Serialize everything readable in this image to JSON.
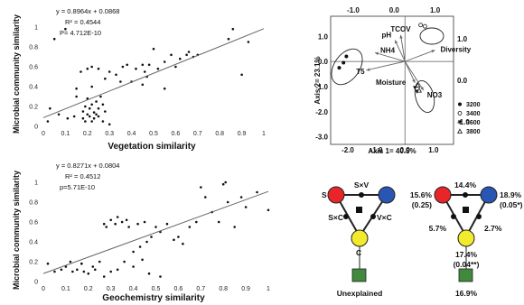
{
  "chart_data": [
    {
      "type": "scatter",
      "id": "vegetation",
      "xlabel": "Vegetation similarity",
      "ylabel": "Microbial community similarity",
      "xticks": [
        "0",
        "0.1",
        "0.2",
        "0.3",
        "0.4",
        "0.5",
        "0.6",
        "0.7",
        "0.8",
        "0.9",
        "1"
      ],
      "yticks": [
        "0",
        "0.2",
        "0.4",
        "0.6",
        "0.8",
        "1"
      ],
      "xlim": [
        0,
        1
      ],
      "ylim": [
        0,
        1.2
      ],
      "equation": "y = 0.8964x + 0.0868",
      "r2": "R² = 0.4544",
      "p": "P= 4.712E-10",
      "fit": {
        "slope": 0.8964,
        "intercept": 0.0868
      },
      "x": [
        0.02,
        0.03,
        0.05,
        0.07,
        0.1,
        0.11,
        0.14,
        0.15,
        0.17,
        0.18,
        0.18,
        0.19,
        0.19,
        0.2,
        0.2,
        0.21,
        0.21,
        0.22,
        0.22,
        0.23,
        0.23,
        0.24,
        0.24,
        0.25,
        0.25,
        0.26,
        0.27,
        0.28,
        0.2,
        0.22,
        0.25,
        0.28,
        0.3,
        0.33,
        0.36,
        0.38,
        0.4,
        0.42,
        0.45,
        0.46,
        0.47,
        0.48,
        0.5,
        0.52,
        0.55,
        0.58,
        0.6,
        0.62,
        0.65,
        0.66,
        0.68,
        0.7,
        0.15,
        0.22,
        0.35,
        0.45,
        0.55,
        0.84,
        0.86,
        0.9,
        0.93,
        0.27,
        0.3
      ],
      "y": [
        0.05,
        0.18,
        0.88,
        0.12,
        0.98,
        0.08,
        0.1,
        0.3,
        0.55,
        0.15,
        0.08,
        0.2,
        0.05,
        0.12,
        0.28,
        0.1,
        0.18,
        0.05,
        0.22,
        0.14,
        0.08,
        0.25,
        0.12,
        0.18,
        0.1,
        0.3,
        0.22,
        0.15,
        0.58,
        0.6,
        0.58,
        0.48,
        0.55,
        0.52,
        0.6,
        0.62,
        0.45,
        0.58,
        0.62,
        0.55,
        0.5,
        0.62,
        0.78,
        0.58,
        0.65,
        0.72,
        0.6,
        0.68,
        0.72,
        0.75,
        0.7,
        0.72,
        0.38,
        0.4,
        0.45,
        0.42,
        0.38,
        0.88,
        0.98,
        0.52,
        0.85,
        0.05,
        0.02
      ]
    },
    {
      "type": "scatter",
      "id": "geochemistry",
      "xlabel": "Geochemistry similarity",
      "ylabel": "Microbial community similarity",
      "xticks": [
        "0",
        "0.1",
        "0.2",
        "0.3",
        "0.4",
        "0.5",
        "0.6",
        "0.7",
        "0.8",
        "0.9",
        "1"
      ],
      "yticks": [
        "0",
        "0.2",
        "0.4",
        "0.6",
        "0.8",
        "1"
      ],
      "xlim": [
        0,
        1
      ],
      "ylim": [
        0,
        1.2
      ],
      "equation": "y = 0.8271x + 0.0804",
      "r2": "R² = 0.4512",
      "p": "p=5.71E-10",
      "fit": {
        "slope": 0.8271,
        "intercept": 0.0804
      },
      "x": [
        0.02,
        0.05,
        0.08,
        0.1,
        0.12,
        0.15,
        0.17,
        0.18,
        0.2,
        0.22,
        0.23,
        0.25,
        0.27,
        0.28,
        0.3,
        0.32,
        0.33,
        0.35,
        0.37,
        0.38,
        0.4,
        0.42,
        0.43,
        0.45,
        0.46,
        0.48,
        0.5,
        0.52,
        0.55,
        0.58,
        0.6,
        0.62,
        0.65,
        0.68,
        0.7,
        0.72,
        0.75,
        0.78,
        0.8,
        0.81,
        0.82,
        0.85,
        0.88,
        0.9,
        0.95,
        1.0,
        0.27,
        0.3,
        0.33,
        0.36,
        0.4,
        0.44,
        0.47,
        0.52,
        0.13,
        0.17
      ],
      "y": [
        0.18,
        0.1,
        0.12,
        0.15,
        0.2,
        0.12,
        0.18,
        0.1,
        0.08,
        0.15,
        0.12,
        0.2,
        0.58,
        0.55,
        0.62,
        0.58,
        0.65,
        0.6,
        0.62,
        0.55,
        0.3,
        0.58,
        0.35,
        0.6,
        0.4,
        0.45,
        0.55,
        0.5,
        0.58,
        0.42,
        0.45,
        0.38,
        0.55,
        0.6,
        0.95,
        0.85,
        0.7,
        0.6,
        0.98,
        1.0,
        0.8,
        0.55,
        0.85,
        0.75,
        0.9,
        0.72,
        0.05,
        0.1,
        0.12,
        0.2,
        0.15,
        0.22,
        0.08,
        0.05,
        0.1,
        0.18
      ]
    },
    {
      "type": "scatter",
      "id": "ordination",
      "xlabel": "Axis 1= 40.5%",
      "ylabel": "Axis 2= 23.1%",
      "xticks": [
        "-2.0",
        "-1.0",
        "0.0",
        "1.0"
      ],
      "yticks": [
        "-3.0",
        "-2.0",
        "-1.0",
        "0.0",
        "1.0"
      ],
      "top_ticks": [
        "-1.0",
        "0.0",
        "1.0"
      ],
      "right_ticks": [
        "1.0",
        "0.0",
        "-1.0"
      ],
      "xlim": [
        -2.6,
        1.7
      ],
      "ylim": [
        -3.3,
        1.8
      ],
      "top_xlim": [
        -1.55,
        1.45
      ],
      "right_ylim": [
        -1.55,
        1.55
      ],
      "vectors": [
        {
          "name": "pH",
          "x": -0.35,
          "y": 0.85
        },
        {
          "name": "TCOV",
          "x": -0.15,
          "y": 1.05
        },
        {
          "name": "Diversity",
          "x": 1.05,
          "y": 0.45
        },
        {
          "name": "NH4",
          "x": -1.05,
          "y": 0.35
        },
        {
          "name": "T5",
          "x": -1.35,
          "y": -0.35
        },
        {
          "name": "Moisture",
          "x": 0.35,
          "y": -0.85
        },
        {
          "name": "NO3",
          "x": 0.65,
          "y": -1.15
        }
      ],
      "legend": [
        {
          "label": "3200",
          "marker": "circle-filled"
        },
        {
          "label": "3400",
          "marker": "circle-open"
        },
        {
          "label": "3600",
          "marker": "triangle-down-filled"
        },
        {
          "label": "3800",
          "marker": "triangle-up-open"
        }
      ],
      "points": [
        {
          "x": -2.3,
          "y": -0.25,
          "m": 0
        },
        {
          "x": -2.15,
          "y": -0.05,
          "m": 0
        },
        {
          "x": -2.05,
          "y": 0.2,
          "m": 0
        },
        {
          "x": 0.55,
          "y": 1.45,
          "m": 1
        },
        {
          "x": 0.7,
          "y": 1.4,
          "m": 1
        },
        {
          "x": 0.35,
          "y": -1.05,
          "m": 2
        },
        {
          "x": 0.42,
          "y": -1.2,
          "m": 2
        },
        {
          "x": 0.5,
          "y": -1.15,
          "m": 3
        },
        {
          "x": 0.45,
          "y": -0.95,
          "m": 3
        }
      ]
    }
  ],
  "vp_left": {
    "s": "S",
    "v": "V",
    "c": "C",
    "sxv": "S×V",
    "sxc": "S×C",
    "vxc": "V×C",
    "unexplained": "Unexplained"
  },
  "vp_right": {
    "top": "14.4%",
    "s_val": "15.6%",
    "s_p": "(0.25)",
    "v_val": "18.9%",
    "v_p": "(0.05*)",
    "left_mid": "5.7%",
    "right_mid": "2.7%",
    "c_val": "17.4%",
    "c_p": "(0.04**)",
    "unexplained": "16.9%"
  },
  "colors": {
    "s": "#e8262a",
    "v": "#2a56b3",
    "c": "#f2ea2c",
    "unexplained": "#3f8a3c",
    "line": "#666666"
  }
}
